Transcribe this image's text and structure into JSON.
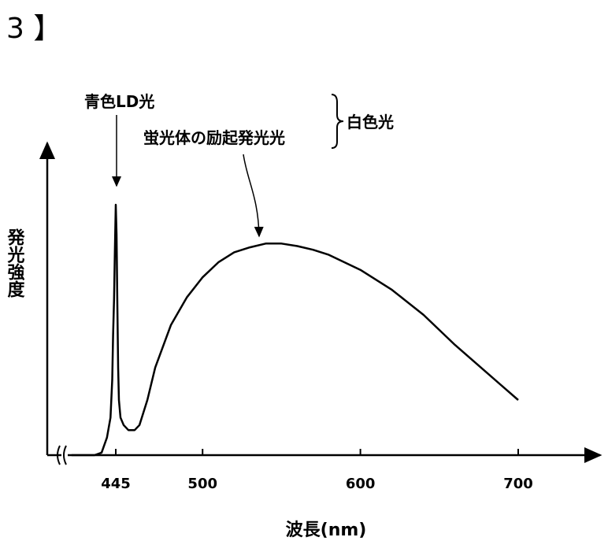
{
  "figure_label": "3 】",
  "chart_data": {
    "type": "line",
    "title": "",
    "xlabel": "波長(nm)",
    "ylabel": "発光強度",
    "x_ticks": [
      445,
      500,
      600,
      700
    ],
    "xlim": [
      400,
      750
    ],
    "ylim": [
      0,
      1.25
    ],
    "axis_break": true,
    "grid": false,
    "series": [
      {
        "color": "#000000",
        "x": [
          420,
          433,
          437,
          440,
          442,
          443,
          443.5,
          444,
          444.5,
          445,
          445.5,
          446,
          446.5,
          447,
          448,
          450,
          453,
          457,
          460,
          465,
          470,
          480,
          490,
          500,
          510,
          520,
          530,
          540,
          550,
          560,
          570,
          580,
          600,
          620,
          640,
          660,
          680,
          700
        ],
        "y": [
          0.0,
          0.0,
          0.01,
          0.07,
          0.15,
          0.3,
          0.48,
          0.62,
          0.82,
          1.0,
          0.88,
          0.6,
          0.35,
          0.22,
          0.15,
          0.12,
          0.1,
          0.1,
          0.12,
          0.22,
          0.35,
          0.52,
          0.63,
          0.71,
          0.77,
          0.81,
          0.83,
          0.845,
          0.845,
          0.835,
          0.82,
          0.8,
          0.74,
          0.66,
          0.56,
          0.44,
          0.33,
          0.22
        ]
      }
    ],
    "annotations": [
      {
        "text": "青色LD光",
        "target_x": 445
      },
      {
        "text": "蛍光体の励起発光光",
        "target_x": 550
      },
      {
        "text": "白色光",
        "brace": true
      }
    ]
  }
}
